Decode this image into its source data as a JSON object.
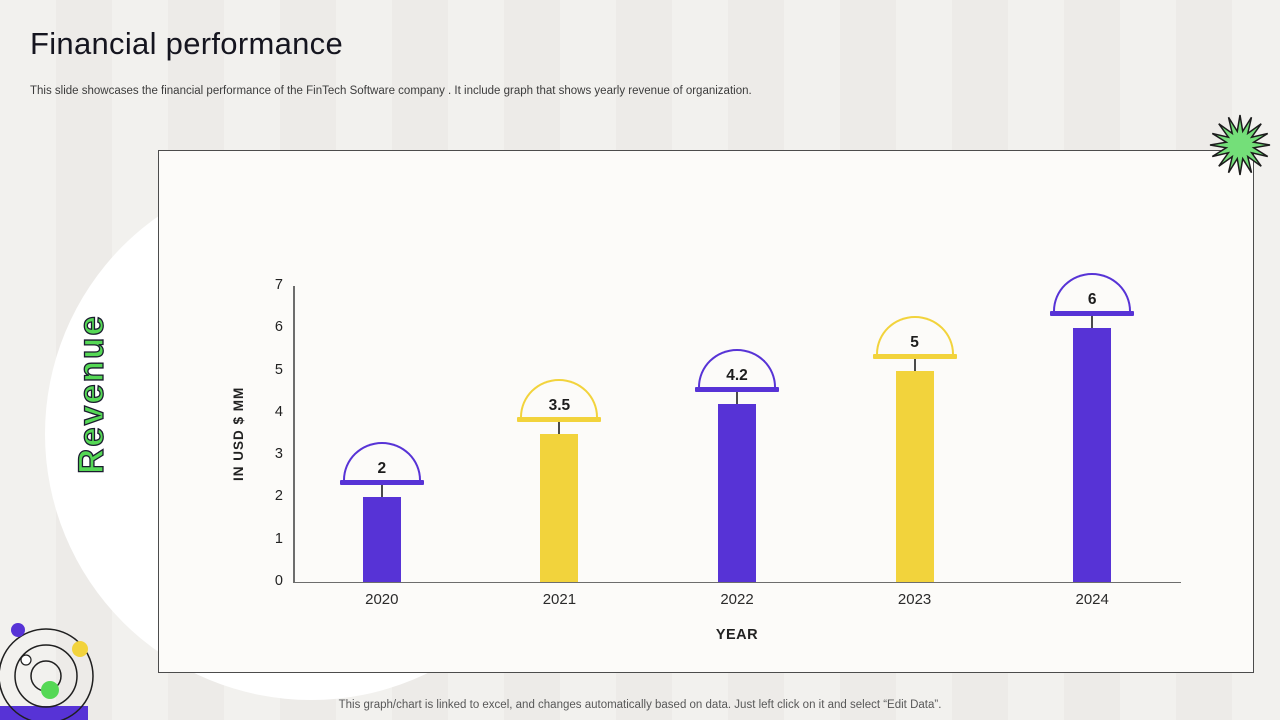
{
  "slide": {
    "title": "Financial performance",
    "subtitle": "This slide showcases the financial performance of the FinTech Software company . It include graph that shows yearly revenue of organization.",
    "side_label": "Revenue",
    "footer_note": "This graph/chart is linked to excel, and changes automatically based on data. Just left click on it and select “Edit Data”."
  },
  "chart_data": {
    "type": "bar",
    "title": "Revenue",
    "categories": [
      "2020",
      "2021",
      "2022",
      "2023",
      "2024"
    ],
    "values": [
      2,
      3.5,
      4.2,
      5,
      6
    ],
    "value_labels": [
      "2",
      "3.5",
      "4.2",
      "5",
      "6"
    ],
    "bar_colors": [
      "#5733D6",
      "#F2D33C",
      "#5733D6",
      "#F2D33C",
      "#5733D6"
    ],
    "xlabel": "YEAR",
    "ylabel": "IN USD $ MM",
    "ylim": [
      0,
      7
    ],
    "yticks": [
      0,
      1,
      2,
      3,
      4,
      5,
      6,
      7
    ],
    "grid": false,
    "legend": "none"
  },
  "decor": {
    "accent_green": "#55D855",
    "accent_purple": "#5733D6",
    "accent_yellow": "#F2D33C",
    "star_green": "#74DF79"
  }
}
